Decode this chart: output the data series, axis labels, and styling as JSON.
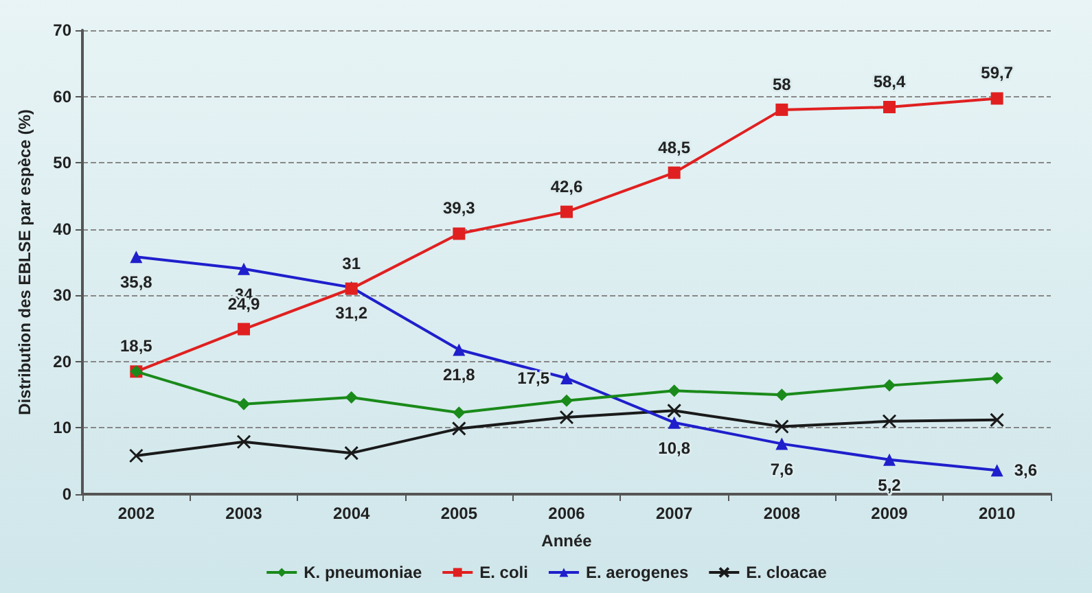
{
  "chart_data": {
    "type": "line",
    "xlabel": "Année",
    "ylabel": "Distribution des EBLSE par espèce (%)",
    "categories": [
      "2002",
      "2003",
      "2004",
      "2005",
      "2006",
      "2007",
      "2008",
      "2009",
      "2010"
    ],
    "series": [
      {
        "name": "K. pneumoniae",
        "color": "#1a8a1a",
        "marker": "diamond",
        "values": [
          18.5,
          13.6,
          14.6,
          12.3,
          14.1,
          15.6,
          15.0,
          16.4,
          17.5
        ]
      },
      {
        "name": "E. coli",
        "color": "#e02020",
        "marker": "square",
        "values": [
          18.5,
          24.9,
          31,
          39.3,
          42.6,
          48.5,
          58,
          58.4,
          59.7
        ],
        "value_labels": [
          "18,5",
          "24,9",
          "31",
          "39,3",
          "42,6",
          "48,5",
          "58",
          "58,4",
          "59,7"
        ]
      },
      {
        "name": "E. aerogenes",
        "color": "#1f1fcc",
        "marker": "triangle",
        "values": [
          35.8,
          34,
          31.2,
          21.8,
          17.5,
          10.8,
          7.6,
          5.2,
          3.6
        ],
        "value_labels": [
          "35,8",
          "34",
          "31,2",
          "21,8",
          "17,5",
          "10,8",
          "7,6",
          "5,2",
          "3,6"
        ]
      },
      {
        "name": "E. cloacae",
        "color": "#1a1a1a",
        "marker": "cross",
        "values": [
          5.8,
          7.9,
          6.2,
          9.9,
          11.6,
          12.6,
          10.2,
          11.0,
          11.2
        ]
      }
    ],
    "ylim": [
      0,
      70
    ],
    "yticks": [
      0,
      10,
      20,
      30,
      40,
      50,
      60,
      70
    ],
    "grid": "y",
    "legend": "bottom",
    "line_style": "solid"
  }
}
